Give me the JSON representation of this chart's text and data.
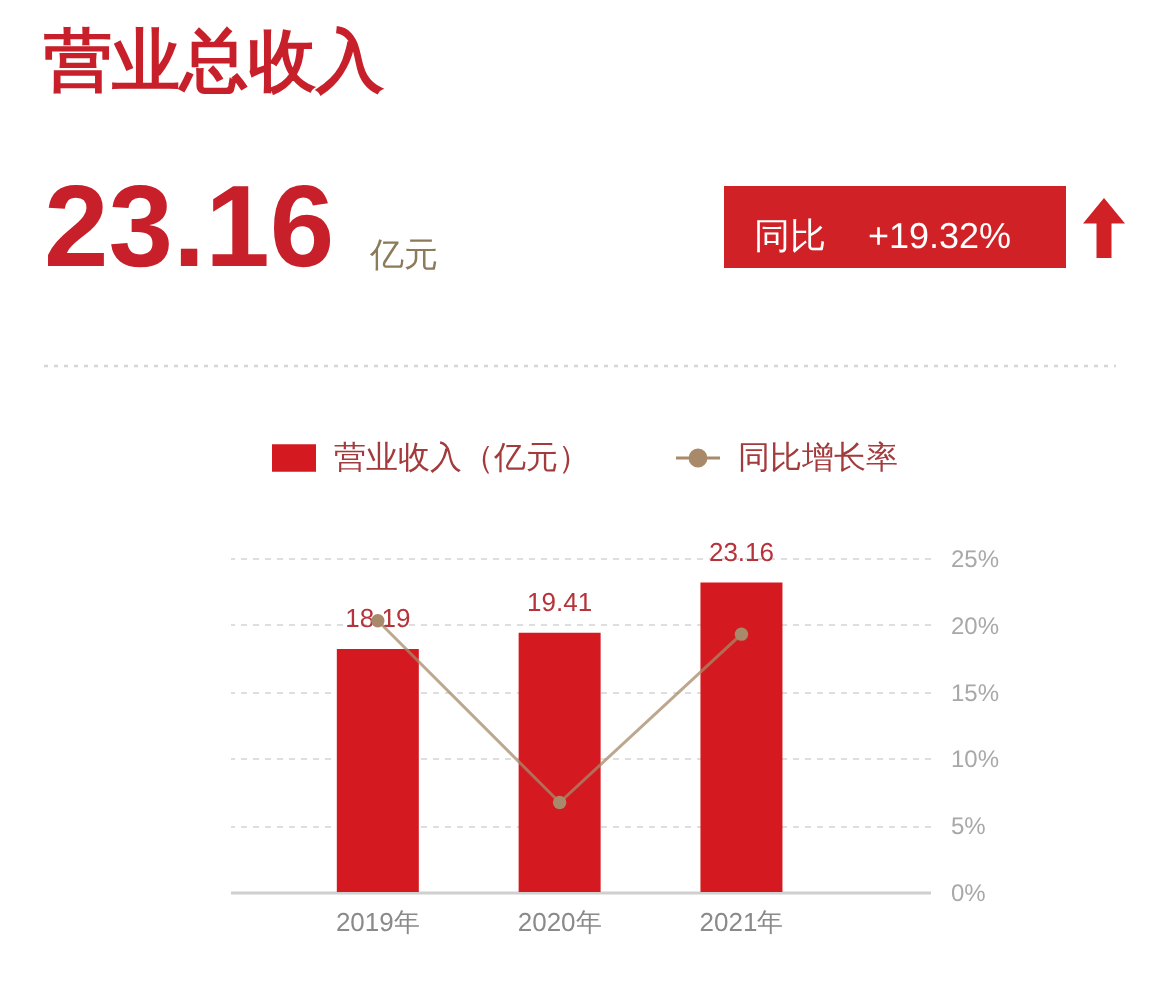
{
  "chart_data": {
    "type": "bar",
    "title": "营业总收入",
    "annotations": [
      "23.16",
      "亿元",
      "同比",
      "+19.32%"
    ],
    "categories": [
      "2019年",
      "2020年",
      "2021年"
    ],
    "series": [
      {
        "name": "营业收入（亿元）",
        "color": "#d41a20",
        "values": [
          18.19,
          19.41,
          23.16
        ],
        "value_labels": [
          "18.19",
          "19.41",
          "23.16"
        ]
      },
      {
        "name": "同比增长率",
        "type": "line",
        "axis": "y2",
        "color": "#a8896a",
        "values": [
          20.3,
          6.7,
          19.3
        ],
        "marker": "circle",
        "line_style": "solid"
      }
    ],
    "ylim": [
      0,
      25
    ],
    "y2lim": [
      0,
      25
    ],
    "y2ticks": [
      {
        "value": 0,
        "label": "0%"
      },
      {
        "value": 5,
        "label": "5%"
      },
      {
        "value": 10,
        "label": "10%"
      },
      {
        "value": 15,
        "label": "15%"
      },
      {
        "value": 20,
        "label": "20%"
      },
      {
        "value": 25,
        "label": "25%"
      }
    ],
    "grid": "y",
    "legend": "top"
  }
}
